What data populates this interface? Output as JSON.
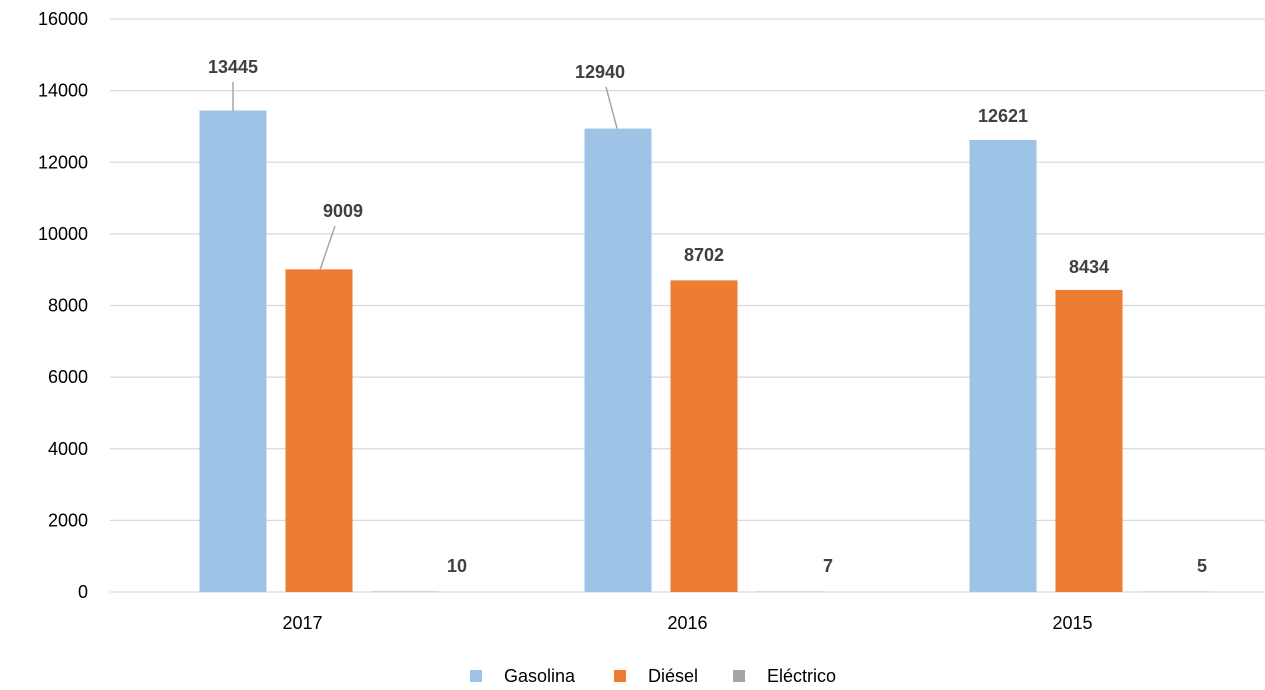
{
  "chart_data": {
    "type": "bar",
    "title": "",
    "xlabel": "",
    "ylabel": "",
    "categories": [
      "2017",
      "2016",
      "2015"
    ],
    "series": [
      {
        "name": "Gasolina",
        "values": [
          13445,
          12940,
          12621
        ],
        "color": "#9DC3E6"
      },
      {
        "name": "Diésel",
        "values": [
          9009,
          8702,
          8434
        ],
        "color": "#ED7D31"
      },
      {
        "name": "Eléctrico",
        "values": [
          10,
          7,
          5
        ],
        "color": "#A5A5A5"
      }
    ],
    "ylim": [
      0,
      16000
    ],
    "yticks": [
      "0",
      "2000",
      "4000",
      "6000",
      "8000",
      "10000",
      "12000",
      "14000",
      "16000"
    ],
    "data_labels": true,
    "grid": true,
    "legend_position": "bottom"
  }
}
